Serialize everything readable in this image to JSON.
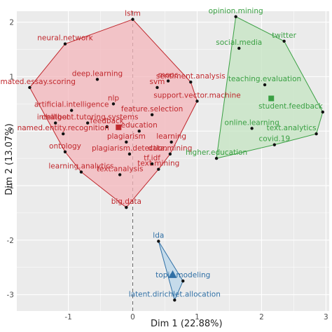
{
  "chart_data": {
    "type": "scatter",
    "xlabel": "Dim 1 (22.88%)",
    "ylabel": "Dim 2 (13.07%)",
    "xlim": [
      -1.8,
      3.05
    ],
    "ylim": [
      -3.3,
      2.2
    ],
    "x_ticks": [
      -1,
      0,
      1,
      2,
      3
    ],
    "y_ticks": [
      -3,
      -2,
      -1,
      0,
      1,
      2
    ],
    "x_tick_labels": [
      "-1",
      "0",
      "1",
      "2",
      "3"
    ],
    "y_tick_labels": [
      "-3",
      "-2",
      "-1",
      "0",
      "1",
      "2"
    ],
    "grid": true,
    "background": "#ebebeb",
    "reference_line": {
      "axis": "x",
      "value": 0,
      "style": "dashed"
    },
    "legend": "none",
    "clusters": [
      {
        "color": "#c0282d",
        "fill": "#f4b6bb",
        "centroid": [
          -0.22,
          0.07
        ],
        "points": [
          {
            "label": "lstm",
            "x": 0.0,
            "y": 2.05
          },
          {
            "label": "neural.network",
            "x": -1.05,
            "y": 1.6
          },
          {
            "label": "deep.learning",
            "x": -0.55,
            "y": 0.95
          },
          {
            "label": "automated.essay.scoring",
            "x": -1.6,
            "y": 0.8
          },
          {
            "label": "nlp",
            "x": -0.3,
            "y": 0.5
          },
          {
            "label": "mooc",
            "x": 0.55,
            "y": 0.92
          },
          {
            "label": "sentiment.analysis",
            "x": 0.9,
            "y": 0.9
          },
          {
            "label": "svm",
            "x": 0.38,
            "y": 0.8
          },
          {
            "label": "support.vector.machine",
            "x": 1.0,
            "y": 0.55
          },
          {
            "label": "artificial.intelligence",
            "x": -0.95,
            "y": 0.38
          },
          {
            "label": "feature.selection",
            "x": 0.3,
            "y": 0.3
          },
          {
            "label": "chatbot",
            "x": -1.2,
            "y": 0.15
          },
          {
            "label": "intelligent.tutoring.systems",
            "x": -0.7,
            "y": 0.15
          },
          {
            "label": "feedback",
            "x": -0.4,
            "y": 0.08
          },
          {
            "label": "named.entity.recognition",
            "x": -1.08,
            "y": -0.05
          },
          {
            "label": "education",
            "x": 0.1,
            "y": 0.0
          },
          {
            "label": "plagiarism",
            "x": -0.1,
            "y": -0.2
          },
          {
            "label": "learning",
            "x": 0.6,
            "y": -0.2
          },
          {
            "label": "ontology",
            "x": -1.05,
            "y": -0.38
          },
          {
            "label": "plagiarism.detection",
            "x": -0.05,
            "y": -0.42
          },
          {
            "label": "data.mining",
            "x": 0.58,
            "y": -0.42
          },
          {
            "label": "tf.idf",
            "x": 0.3,
            "y": -0.6
          },
          {
            "label": "text.analysis",
            "x": -0.2,
            "y": -0.8
          },
          {
            "label": "text.mining",
            "x": 0.4,
            "y": -0.7
          },
          {
            "label": "learning.analytics",
            "x": -0.8,
            "y": -0.75
          },
          {
            "label": "big.data",
            "x": -0.1,
            "y": -1.4
          }
        ]
      },
      {
        "color": "#3aa043",
        "fill": "#c4e4c2",
        "centroid": [
          2.15,
          0.6
        ],
        "points": [
          {
            "label": "opinion.mining",
            "x": 1.6,
            "y": 2.1
          },
          {
            "label": "twitter",
            "x": 2.35,
            "y": 1.65
          },
          {
            "label": "social.media",
            "x": 1.65,
            "y": 1.52
          },
          {
            "label": "teaching.evaluation",
            "x": 2.05,
            "y": 0.85
          },
          {
            "label": "student.feedback",
            "x": 2.95,
            "y": 0.35
          },
          {
            "label": "online.learning",
            "x": 1.85,
            "y": 0.05
          },
          {
            "label": "text.analytics",
            "x": 2.85,
            "y": -0.05
          },
          {
            "label": "covid.19",
            "x": 2.2,
            "y": -0.25
          },
          {
            "label": "higher.education",
            "x": 1.3,
            "y": -0.5
          }
        ]
      },
      {
        "color": "#2f6fa5",
        "fill": "#b8d5e9",
        "centroid": [
          0.62,
          -2.63
        ],
        "points": [
          {
            "label": "lda",
            "x": 0.4,
            "y": -2.02
          },
          {
            "label": "topic.modeling",
            "x": 0.78,
            "y": -2.75
          },
          {
            "label": "latent.dirichlet.allocation",
            "x": 0.65,
            "y": -3.1
          }
        ]
      }
    ]
  }
}
